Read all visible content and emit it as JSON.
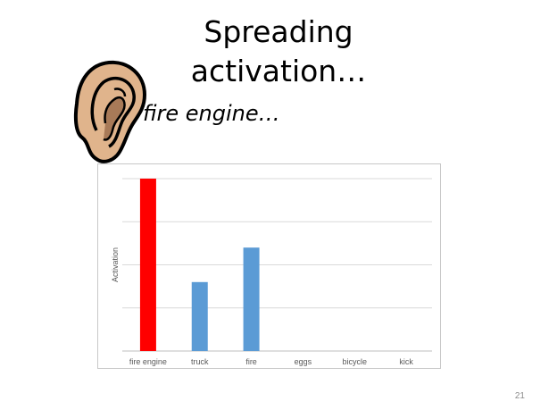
{
  "slide": {
    "title_line1": "Spreading",
    "title_line2": "activation…",
    "phrase": "fire engine…",
    "page_number": "21",
    "icon": "ear-icon"
  },
  "chart_data": {
    "type": "bar",
    "categories": [
      "fire engine",
      "truck",
      "fire",
      "eggs",
      "bicycle",
      "kick"
    ],
    "values": [
      100,
      40,
      60,
      0,
      0,
      0
    ],
    "colors": [
      "#ff0000",
      "#5b9bd5",
      "#5b9bd5",
      "#5b9bd5",
      "#5b9bd5",
      "#5b9bd5"
    ],
    "title": "",
    "xlabel": "",
    "ylabel": "Activation",
    "ylim": [
      0,
      100
    ],
    "gridlines": 4,
    "grid": true,
    "legend": "none",
    "y_tick_labels": false
  }
}
